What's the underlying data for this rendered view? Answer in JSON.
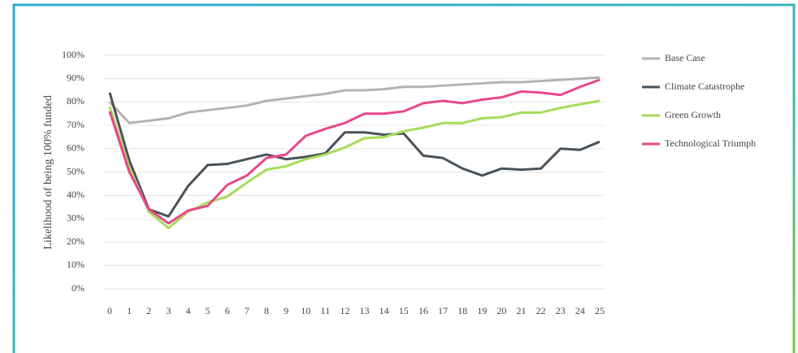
{
  "chart_data": {
    "type": "line",
    "y_label": "Likelihood of being 100% funded",
    "x": [
      0,
      1,
      2,
      3,
      4,
      5,
      6,
      7,
      8,
      9,
      10,
      11,
      12,
      13,
      14,
      15,
      16,
      17,
      18,
      19,
      20,
      21,
      22,
      23,
      24,
      25
    ],
    "xlim": [
      0,
      25
    ],
    "xticks": [
      0,
      1,
      2,
      3,
      4,
      5,
      6,
      7,
      8,
      9,
      10,
      11,
      12,
      13,
      14,
      15,
      16,
      17,
      18,
      19,
      20,
      21,
      22,
      23,
      24,
      25
    ],
    "ylim": [
      0,
      100
    ],
    "yticks": [
      {
        "value": 0,
        "label": "0%"
      },
      {
        "value": 10,
        "label": "10%"
      },
      {
        "value": 20,
        "label": "20%"
      },
      {
        "value": 30,
        "label": "30%"
      },
      {
        "value": 40,
        "label": "40%"
      },
      {
        "value": 50,
        "label": "50%"
      },
      {
        "value": 60,
        "label": "60%"
      },
      {
        "value": 70,
        "label": "70%"
      },
      {
        "value": 80,
        "label": "80%"
      },
      {
        "value": 90,
        "label": "90%"
      },
      {
        "value": 100,
        "label": "100%"
      }
    ],
    "grid": true,
    "legend": "right",
    "series": [
      {
        "name": "Base Case",
        "color": "#b3b3b3",
        "values": [
          80,
          71,
          72,
          73,
          75.5,
          76.5,
          77.5,
          78.5,
          80.5,
          81.5,
          82.5,
          83.5,
          85,
          85,
          85.5,
          86.5,
          86.5,
          87,
          87.5,
          88,
          88.5,
          88.5,
          89,
          89.5,
          90,
          90.5
        ]
      },
      {
        "name": "Climate Catastrophe",
        "color": "#4a5259",
        "values": [
          84,
          55,
          34,
          31,
          44,
          53,
          53.5,
          55.5,
          57.5,
          55.5,
          56.5,
          58,
          67,
          67,
          66,
          66.5,
          57,
          56,
          51.5,
          48.5,
          51.5,
          51,
          51.5,
          60,
          59.5,
          63
        ]
      },
      {
        "name": "Green Growth",
        "color": "#a6dc5a",
        "values": [
          78,
          52,
          33,
          26,
          33,
          37,
          39.5,
          45.5,
          51,
          52.5,
          55.5,
          57.5,
          60.5,
          64.5,
          65,
          67.5,
          69,
          71,
          71,
          73,
          73.5,
          75.5,
          75.5,
          77.5,
          79,
          80.5
        ]
      },
      {
        "name": "Technological Triumph",
        "color": "#e8488a",
        "values": [
          76,
          50,
          34,
          28,
          33.5,
          35.5,
          44.5,
          48.5,
          56,
          57.5,
          65.5,
          68.5,
          71,
          75,
          75,
          76,
          79.5,
          80.5,
          79.5,
          81,
          82,
          84.5,
          84,
          83,
          86.5,
          89.5
        ]
      }
    ]
  }
}
